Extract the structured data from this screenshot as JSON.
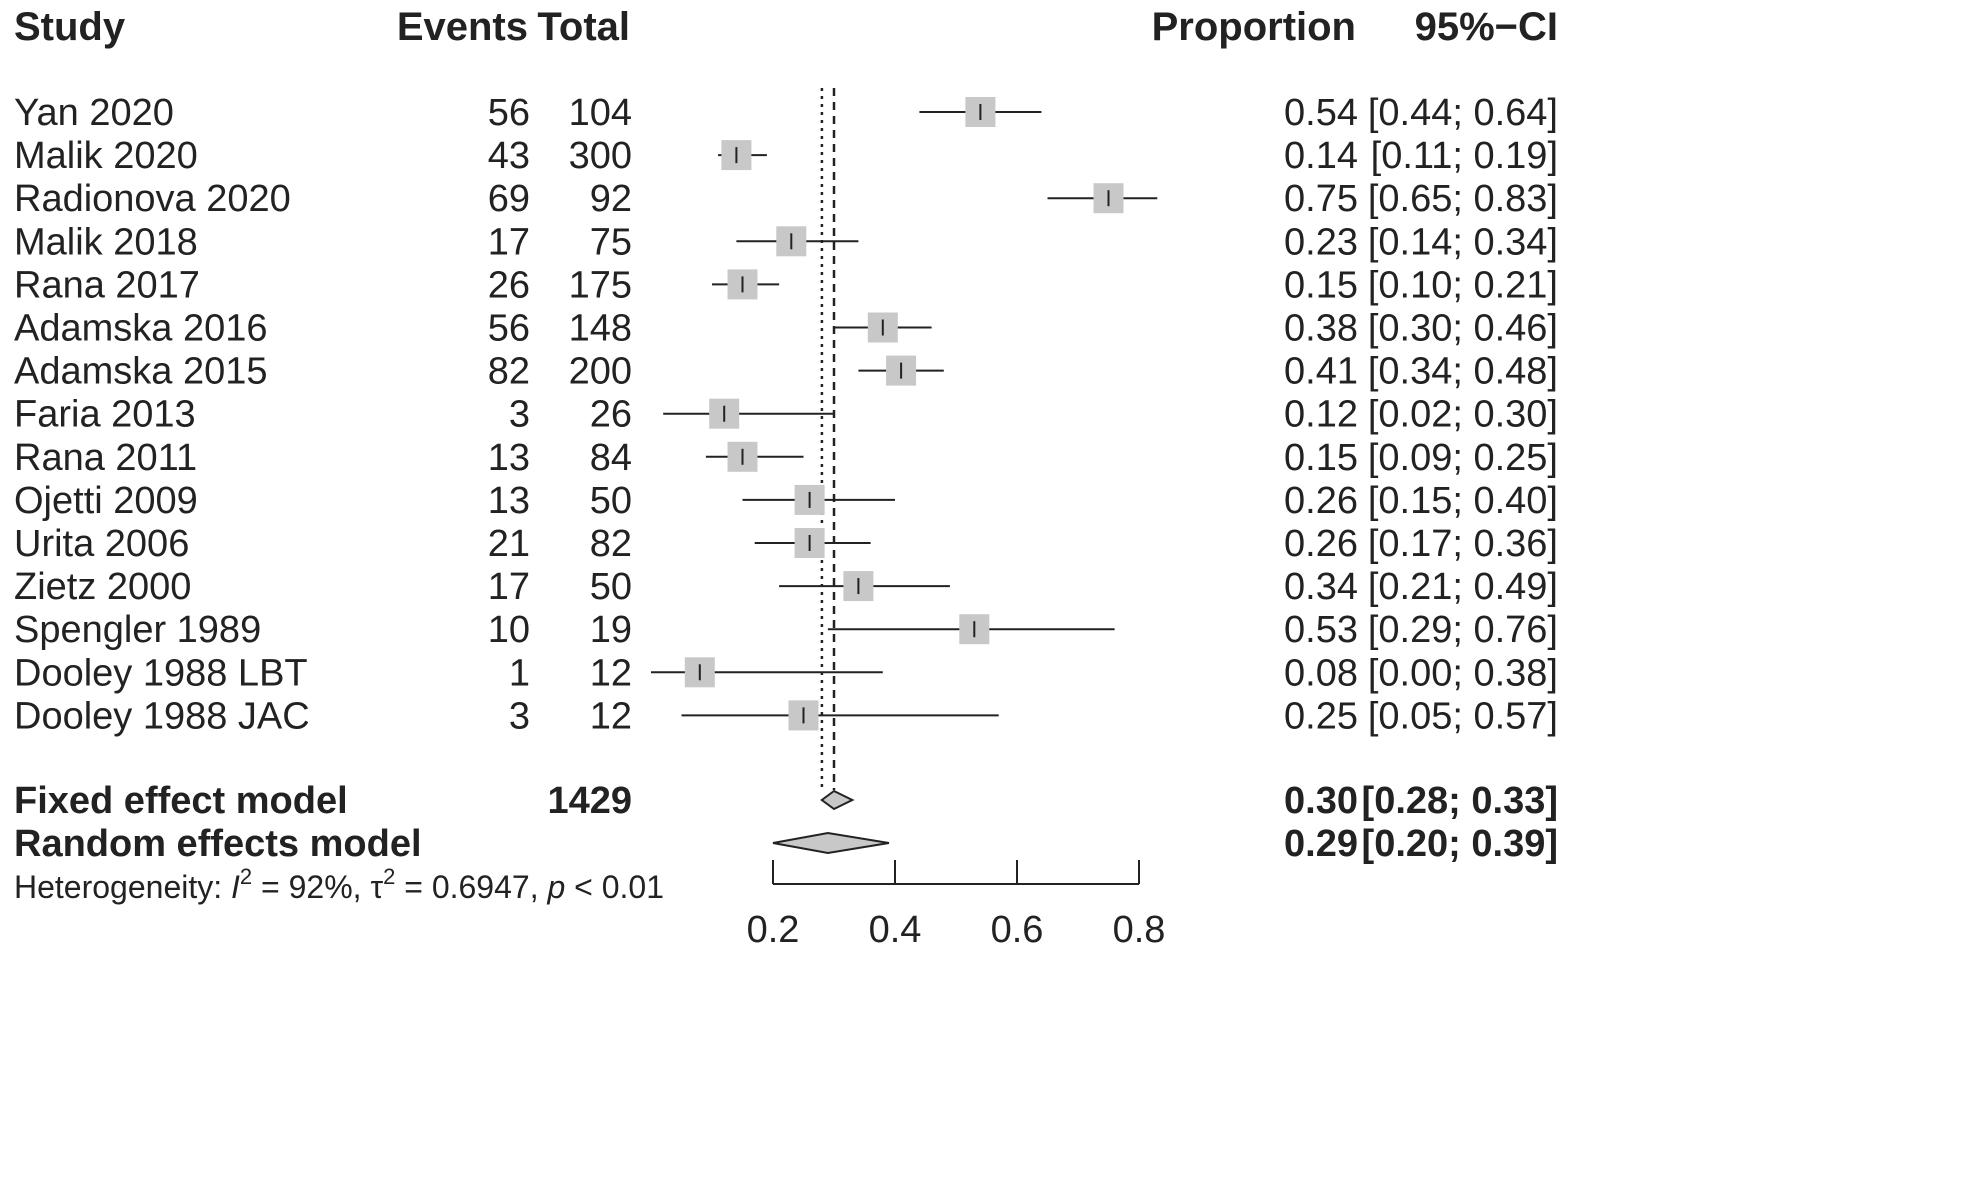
{
  "header": {
    "study": "Study",
    "events": "Events",
    "total": "Total",
    "proportion": "Proportion",
    "ci": "95%−CI"
  },
  "fixed": {
    "label": "Fixed effect model",
    "total": "1429",
    "proportion": "0.30",
    "ci": "[0.28; 0.33]",
    "estimate": 0.3,
    "lower": 0.28,
    "upper": 0.33
  },
  "random": {
    "label": "Random effects model",
    "proportion": "0.29",
    "ci": "[0.20; 0.39]",
    "estimate": 0.29,
    "lower": 0.2,
    "upper": 0.39
  },
  "heterogeneity": {
    "prefix": "Heterogeneity: ",
    "i2_symbol": "I",
    "i2_value": " = 92%, ",
    "tau_symbol": "τ",
    "tau_value": " = 0.6947, ",
    "p_symbol": "p",
    "p_value": " < 0.01",
    "sup": "2"
  },
  "colors": {
    "square": "#c8c8c8",
    "diamond": "#c8c8c8",
    "line": "#222222"
  },
  "chart_data": {
    "type": "forest",
    "xlim": [
      0.2,
      0.8
    ],
    "ticks": [
      "0.2",
      "0.4",
      "0.6",
      "0.8"
    ],
    "tick_values": [
      0.2,
      0.4,
      0.6,
      0.8
    ],
    "fixed_line": 0.3,
    "random_line": 0.29,
    "studies": [
      {
        "study": "Yan 2020",
        "events": "56",
        "total": "104",
        "proportion": "0.54",
        "ci": "[0.44; 0.64]",
        "est": 0.54,
        "lo": 0.44,
        "hi": 0.64
      },
      {
        "study": "Malik 2020",
        "events": "43",
        "total": "300",
        "proportion": "0.14",
        "ci": "[0.11; 0.19]",
        "est": 0.14,
        "lo": 0.11,
        "hi": 0.19
      },
      {
        "study": "Radionova 2020",
        "events": "69",
        "total": "92",
        "proportion": "0.75",
        "ci": "[0.65; 0.83]",
        "est": 0.75,
        "lo": 0.65,
        "hi": 0.83
      },
      {
        "study": "Malik 2018",
        "events": "17",
        "total": "75",
        "proportion": "0.23",
        "ci": "[0.14; 0.34]",
        "est": 0.23,
        "lo": 0.14,
        "hi": 0.34
      },
      {
        "study": "Rana 2017",
        "events": "26",
        "total": "175",
        "proportion": "0.15",
        "ci": "[0.10; 0.21]",
        "est": 0.15,
        "lo": 0.1,
        "hi": 0.21
      },
      {
        "study": "Adamska 2016",
        "events": "56",
        "total": "148",
        "proportion": "0.38",
        "ci": "[0.30; 0.46]",
        "est": 0.38,
        "lo": 0.3,
        "hi": 0.46
      },
      {
        "study": "Adamska 2015",
        "events": "82",
        "total": "200",
        "proportion": "0.41",
        "ci": "[0.34; 0.48]",
        "est": 0.41,
        "lo": 0.34,
        "hi": 0.48
      },
      {
        "study": "Faria 2013",
        "events": "3",
        "total": "26",
        "proportion": "0.12",
        "ci": "[0.02; 0.30]",
        "est": 0.12,
        "lo": 0.02,
        "hi": 0.3
      },
      {
        "study": "Rana 2011",
        "events": "13",
        "total": "84",
        "proportion": "0.15",
        "ci": "[0.09; 0.25]",
        "est": 0.15,
        "lo": 0.09,
        "hi": 0.25
      },
      {
        "study": "Ojetti 2009",
        "events": "13",
        "total": "50",
        "proportion": "0.26",
        "ci": "[0.15; 0.40]",
        "est": 0.26,
        "lo": 0.15,
        "hi": 0.4
      },
      {
        "study": "Urita 2006",
        "events": "21",
        "total": "82",
        "proportion": "0.26",
        "ci": "[0.17; 0.36]",
        "est": 0.26,
        "lo": 0.17,
        "hi": 0.36
      },
      {
        "study": "Zietz 2000",
        "events": "17",
        "total": "50",
        "proportion": "0.34",
        "ci": "[0.21; 0.49]",
        "est": 0.34,
        "lo": 0.21,
        "hi": 0.49
      },
      {
        "study": "Spengler 1989",
        "events": "10",
        "total": "19",
        "proportion": "0.53",
        "ci": "[0.29; 0.76]",
        "est": 0.53,
        "lo": 0.29,
        "hi": 0.76
      },
      {
        "study": "Dooley 1988 LBT",
        "events": "1",
        "total": "12",
        "proportion": "0.08",
        "ci": "[0.00; 0.38]",
        "est": 0.08,
        "lo": 0.0,
        "hi": 0.38
      },
      {
        "study": "Dooley 1988 JAC",
        "events": "3",
        "total": "12",
        "proportion": "0.25",
        "ci": "[0.05; 0.57]",
        "est": 0.25,
        "lo": 0.05,
        "hi": 0.57
      }
    ]
  }
}
